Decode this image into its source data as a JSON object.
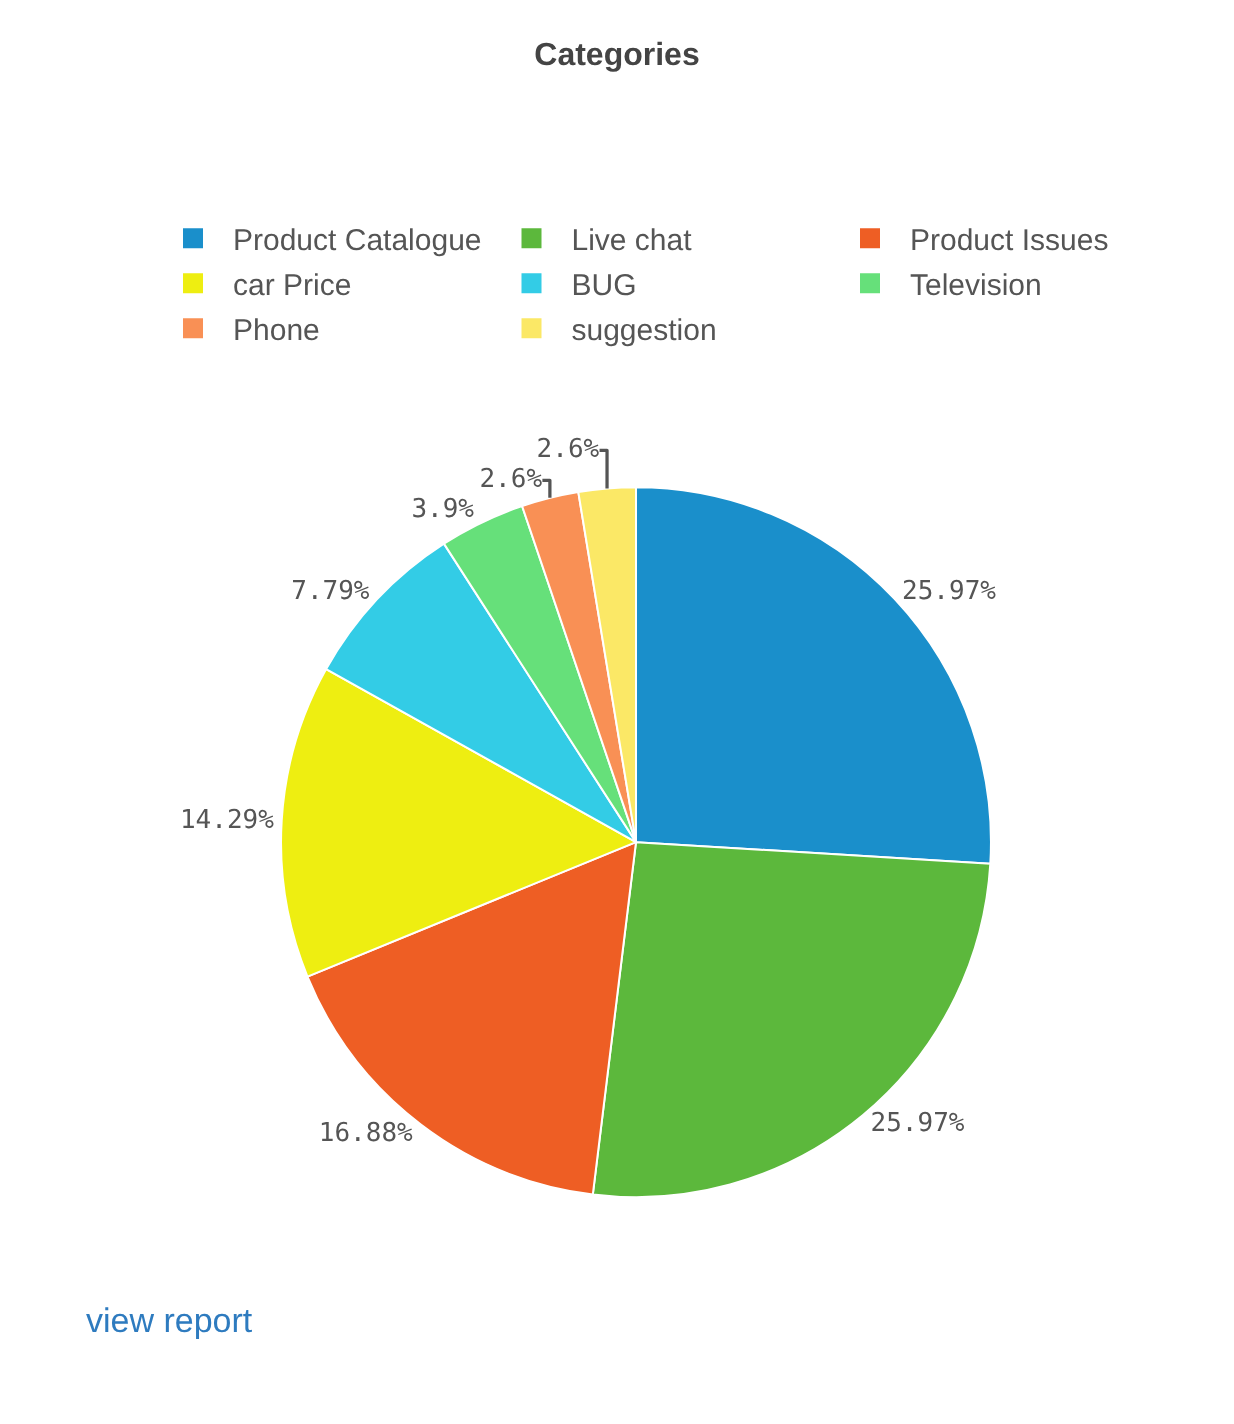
{
  "chart_data": {
    "type": "pie",
    "title": "Categories",
    "categories": [
      "Product Catalogue",
      "Live chat",
      "Product Issues",
      "car Price",
      "BUG",
      "Television",
      "Phone",
      "suggestion"
    ],
    "values": [
      25.97,
      25.97,
      16.88,
      14.29,
      7.79,
      3.9,
      2.6,
      2.6
    ],
    "value_labels": [
      "25.97%",
      "25.97%",
      "16.88%",
      "14.29%",
      "7.79%",
      "3.9%",
      "2.6%",
      "2.6%"
    ],
    "colors": [
      "#1a8fcb",
      "#5cb83c",
      "#ee5e24",
      "#eeee11",
      "#33cce6",
      "#66e07a",
      "#f99055",
      "#fbe866"
    ],
    "legend": "top",
    "annotations": [
      "view report"
    ]
  }
}
